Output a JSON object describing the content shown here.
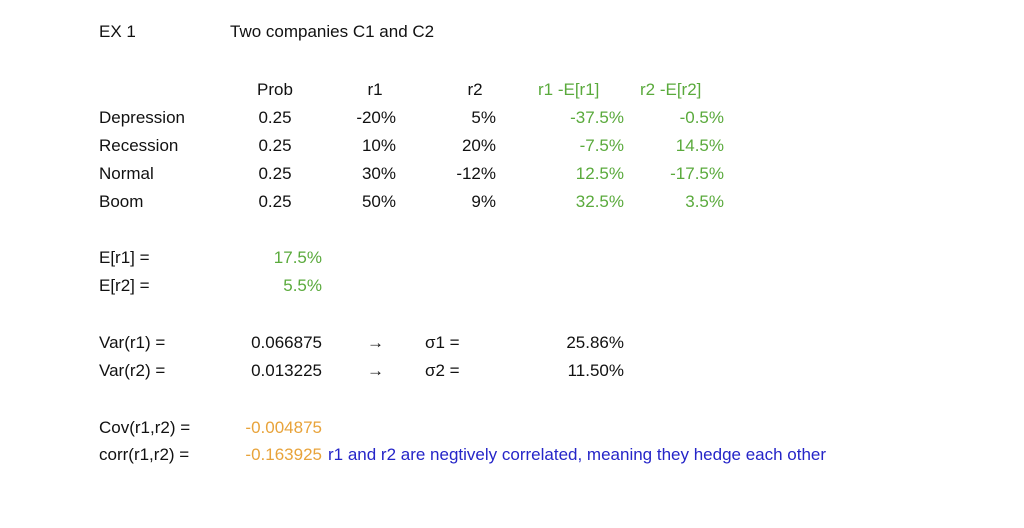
{
  "header": {
    "ex": "EX 1",
    "title": "Two companies C1 and C2"
  },
  "table": {
    "headers": {
      "prob": "Prob",
      "r1": "r1",
      "r2": "r2",
      "dev1": "r1 -E[r1]",
      "dev2": "r2 -E[r2]"
    },
    "rows": [
      {
        "state": "Depression",
        "prob": "0.25",
        "r1": "-20%",
        "r2": "5%",
        "dev1": "-37.5%",
        "dev2": "-0.5%"
      },
      {
        "state": "Recession",
        "prob": "0.25",
        "r1": "10%",
        "r2": "20%",
        "dev1": "-7.5%",
        "dev2": "14.5%"
      },
      {
        "state": "Normal",
        "prob": "0.25",
        "r1": "30%",
        "r2": "-12%",
        "dev1": "12.5%",
        "dev2": "-17.5%"
      },
      {
        "state": "Boom",
        "prob": "0.25",
        "r1": "50%",
        "r2": "9%",
        "dev1": "32.5%",
        "dev2": "3.5%"
      }
    ]
  },
  "expectations": {
    "e1_label": "E[r1] =",
    "e1_value": "17.5%",
    "e2_label": "E[r2] =",
    "e2_value": "5.5%"
  },
  "variance": {
    "var1_label": "Var(r1) =",
    "var1_value": "0.066875",
    "arrow1": "→",
    "sigma1_label": "σ1 =",
    "sigma1_value": "25.86%",
    "var2_label": "Var(r2) =",
    "var2_value": "0.013225",
    "arrow2": "→",
    "sigma2_label": "σ2 =",
    "sigma2_value": "11.50%"
  },
  "covariance": {
    "cov_label": "Cov(r1,r2) =",
    "cov_value": "-0.004875",
    "corr_label": "corr(r1,r2) =",
    "corr_value": "-0.163925",
    "note": "r1 and r2 are negtively correlated, meaning they hedge each other"
  },
  "colors": {
    "green": "#5aaa3c",
    "orange": "#e8a33a",
    "blue": "#2525c8"
  }
}
